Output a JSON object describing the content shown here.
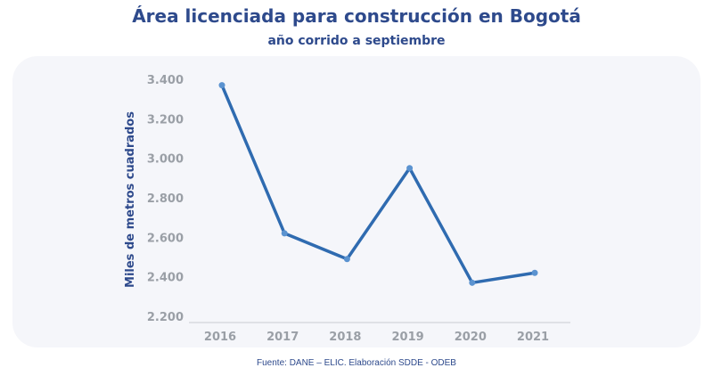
{
  "title": "Área licenciada para construcción en Bogotá",
  "subtitle": "año corrido a septiembre",
  "source": "Fuente: DANE – ELIC. Elaboración SDDE - ODEB",
  "colors": {
    "title": "#2e4a8c",
    "line": "#2f6bb0",
    "marker": "#5b93d0",
    "tick": "#9a9fa6",
    "axis": "#c9ccd2",
    "panel": "#f5f6fa"
  },
  "chart_data": {
    "type": "line",
    "title": "Área licenciada para construcción en Bogotá",
    "subtitle": "año corrido a septiembre",
    "xlabel": "",
    "ylabel": "Miles de metros cuadrados",
    "categories": [
      "2016",
      "2017",
      "2018",
      "2019",
      "2020",
      "2021"
    ],
    "series": [
      {
        "values": [
          3370,
          2620,
          2490,
          2950,
          2370,
          2420
        ]
      }
    ],
    "ylim": [
      2200,
      3400
    ],
    "yticks": [
      2200,
      2400,
      2600,
      2800,
      3000,
      3200,
      3400
    ],
    "ytick_labels": [
      "2.200",
      "2.400",
      "2.600",
      "2.800",
      "3.000",
      "3.200",
      "3.400"
    ],
    "grid": false,
    "legend": "none"
  }
}
